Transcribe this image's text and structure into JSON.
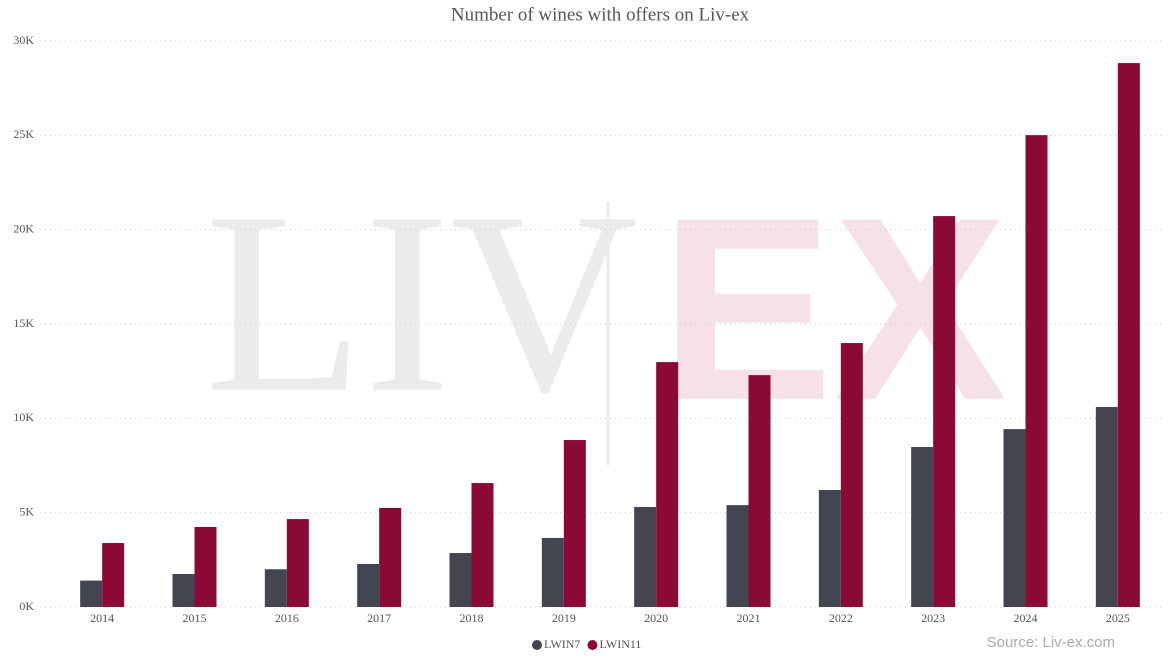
{
  "chart_data": {
    "type": "bar",
    "title": "Number of wines with offers on Liv-ex",
    "categories": [
      "2014",
      "2015",
      "2016",
      "2017",
      "2018",
      "2019",
      "2020",
      "2021",
      "2022",
      "2023",
      "2024",
      "2025"
    ],
    "series": [
      {
        "name": "LWIN7",
        "color": "#434651",
        "values": [
          1400,
          1750,
          2000,
          2280,
          2860,
          3660,
          5300,
          5400,
          6200,
          8480,
          9430,
          10600
        ]
      },
      {
        "name": "LWIN11",
        "color": "#8a0a35",
        "values": [
          3390,
          4240,
          4660,
          5250,
          6570,
          8850,
          12980,
          12290,
          13990,
          20720,
          25010,
          28830
        ]
      }
    ],
    "ylim": [
      0,
      30000
    ],
    "yticks": [
      {
        "value": 0,
        "label": "0K"
      },
      {
        "value": 5000,
        "label": "5K"
      },
      {
        "value": 10000,
        "label": "10K"
      },
      {
        "value": 15000,
        "label": "15K"
      },
      {
        "value": 20000,
        "label": "20K"
      },
      {
        "value": 25000,
        "label": "25K"
      },
      {
        "value": 30000,
        "label": "30K"
      }
    ],
    "grid": true,
    "source": "Source: Liv-ex.com",
    "watermark": [
      "LIV",
      "EX"
    ]
  }
}
